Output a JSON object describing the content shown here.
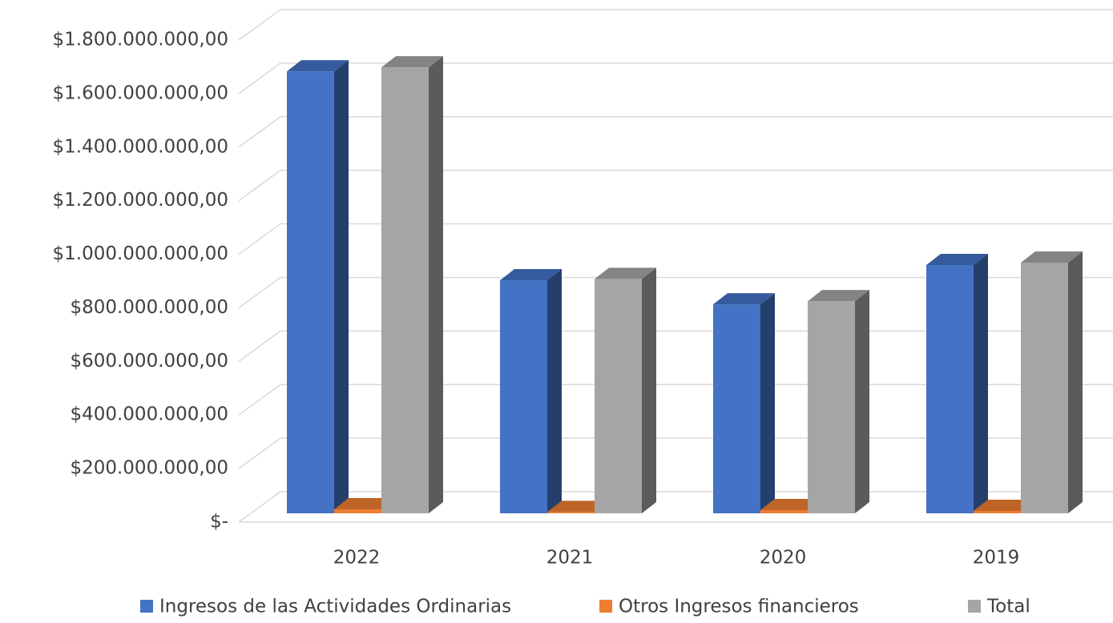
{
  "chart_data": {
    "type": "bar3d",
    "categories": [
      "2022",
      "2021",
      "2020",
      "2019"
    ],
    "series": [
      {
        "name": "Ingresos de las Actividades Ordinarias",
        "color": "#4472c4",
        "values": [
          1650000000,
          870000000,
          780000000,
          927000000
        ]
      },
      {
        "name": "Otros Ingresos financieros",
        "color": "#ed7d31",
        "values": [
          15000000,
          5000000,
          12000000,
          9000000
        ]
      },
      {
        "name": "Total",
        "color": "#a5a5a5",
        "values": [
          1665000000,
          875000000,
          792000000,
          936000000
        ]
      }
    ],
    "ylim": [
      0,
      1800000000
    ],
    "yticks": [
      {
        "value": 0,
        "label": "$-"
      },
      {
        "value": 200000000,
        "label": "$200.000.000,00"
      },
      {
        "value": 400000000,
        "label": "$400.000.000,00"
      },
      {
        "value": 600000000,
        "label": "$600.000.000,00"
      },
      {
        "value": 800000000,
        "label": "$800.000.000,00"
      },
      {
        "value": 1000000000,
        "label": "$1.000.000.000,00"
      },
      {
        "value": 1200000000,
        "label": "$1.200.000.000,00"
      },
      {
        "value": 1400000000,
        "label": "$1.400.000.000,00"
      },
      {
        "value": 1600000000,
        "label": "$1.600.000.000,00"
      },
      {
        "value": 1800000000,
        "label": "$1.800.000.000,00"
      }
    ],
    "grid": true,
    "legend": "bottom"
  }
}
